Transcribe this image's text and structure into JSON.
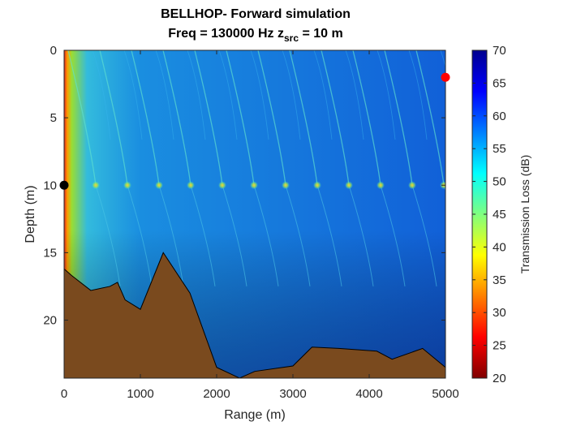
{
  "chart_data": {
    "type": "heatmap",
    "title_line1": "BELLHOP- Forward simulation",
    "title_line2_prefix": "Freq = 130000 Hz    z",
    "title_line2_subscript": "src",
    "title_line2_suffix": " = 10 m",
    "xlabel": "Range (m)",
    "ylabel": "Depth (m)",
    "xlim": [
      0,
      5000
    ],
    "ylim": [
      0,
      24.3
    ],
    "y_reversed": true,
    "x_ticks": [
      0,
      1000,
      2000,
      3000,
      4000,
      5000
    ],
    "y_ticks": [
      0,
      5,
      10,
      15,
      20
    ],
    "colorbar": {
      "label": "Transmission Loss (dB)",
      "range": [
        20,
        70
      ],
      "ticks": [
        20,
        25,
        30,
        35,
        40,
        45,
        50,
        55,
        60,
        65,
        70
      ],
      "colormap": "jet",
      "placement": "right"
    },
    "source": {
      "range": 0,
      "depth": 10,
      "color": "#000000"
    },
    "receiver": {
      "range": 5000,
      "depth": 2,
      "color": "#ff0000"
    },
    "bathymetry": {
      "color": "#7a4a1e",
      "range": [
        0,
        100,
        350,
        600,
        700,
        800,
        1000,
        1300,
        1650,
        2000,
        2300,
        2500,
        3000,
        3250,
        3600,
        4100,
        4300,
        4700,
        5000
      ],
      "depth": [
        16.2,
        16.7,
        17.8,
        17.5,
        17.2,
        18.5,
        19.2,
        15.0,
        18.0,
        23.5,
        24.3,
        23.8,
        23.4,
        22.0,
        22.1,
        22.3,
        22.9,
        22.1,
        23.5
      ]
    }
  }
}
